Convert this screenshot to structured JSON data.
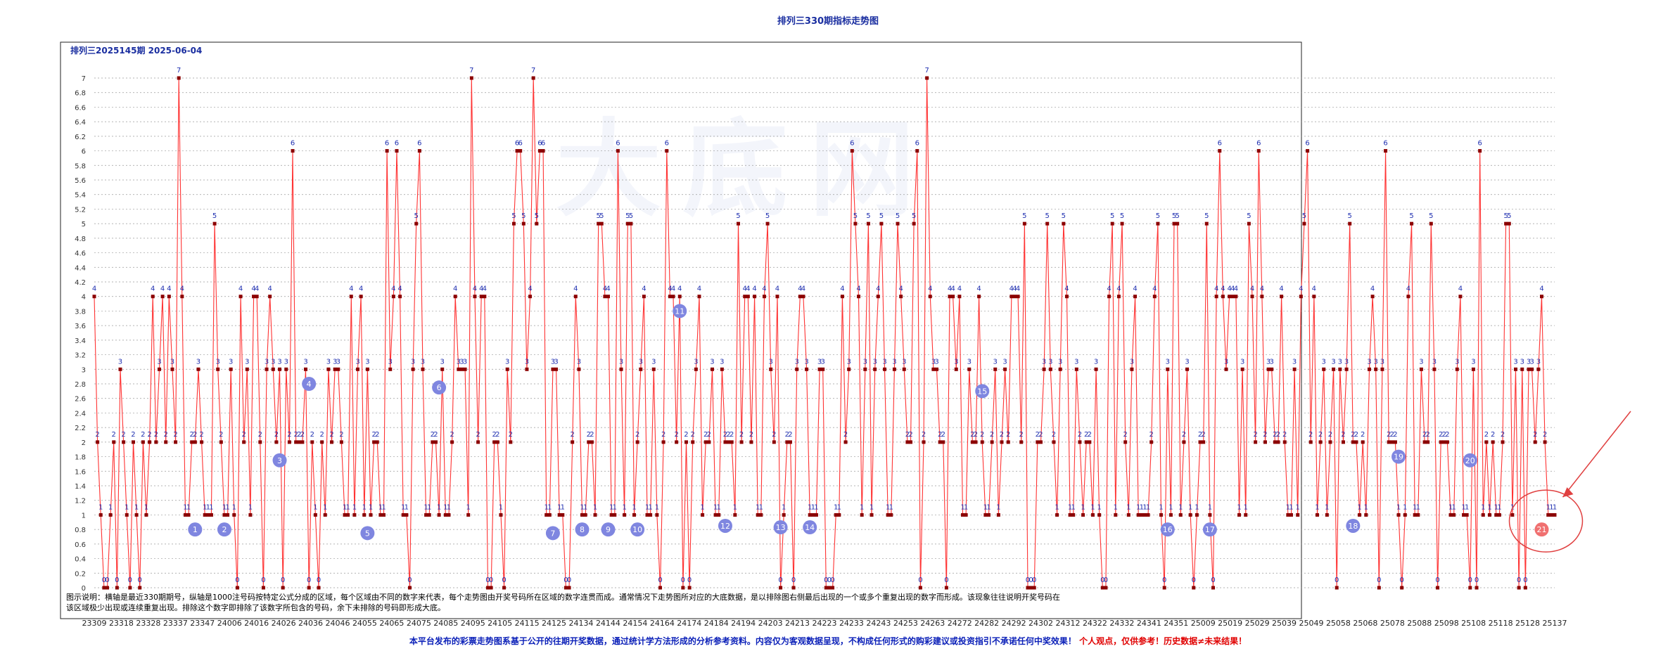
{
  "page": {
    "title": "排列三330期指标走势图",
    "subtitle": "排列三2025145期  2025-06-04",
    "watermark": "大底网",
    "description": "图示说明：横轴是最近330期期号，纵轴是1000注号码按特定公式分成的区域，每个区域由不同的数字来代表，每个走势图由开奖号码所在区域的数字连贯而成。通常情况下走势图所对应的大底数据，是以排除图右侧最后出现的一个或多个重复出现的数字而形成。该现象往往说明开奖号码在该区域极少出现或连续重复出现。排除这个数字即排除了该数字所包含的号码，余下未排除的号码即形成大底。",
    "disclaimer_main": "本平台发布的彩票走势图系基于公开的往期开奖数据，通过统计学方法形成的分析参考资料。内容仅为客观数据呈现，不构成任何形式的购彩建议或投资指引不承诺任何中奖效果！",
    "disclaimer_red": "个人观点，仅供参考！历史数据≠未来结果！"
  },
  "chart_data": {
    "type": "line",
    "title": "排列三330期指标走势图",
    "xlabel": "",
    "ylabel": "",
    "ylim": [
      0,
      7
    ],
    "y_ticks": [
      "0",
      "0.2",
      "0.4",
      "0.6",
      "0.8",
      "1",
      "1.2",
      "1.4",
      "1.6",
      "1.8",
      "2",
      "2.2",
      "2.4",
      "2.6",
      "2.8",
      "3",
      "3.2",
      "3.4",
      "3.6",
      "3.8",
      "4",
      "4.2",
      "4.4",
      "4.6",
      "4.8",
      "5",
      "5.2",
      "5.4",
      "5.6",
      "5.8",
      "6",
      "6.2",
      "6.4",
      "6.6",
      "6.8",
      "7"
    ],
    "x_tick_labels": [
      "23309",
      "23318",
      "23328",
      "23337",
      "23347",
      "24006",
      "24016",
      "24026",
      "24036",
      "24046",
      "24055",
      "24065",
      "24075",
      "24085",
      "24095",
      "24105",
      "24115",
      "24125",
      "24134",
      "24144",
      "24154",
      "24164",
      "24174",
      "24184",
      "24194",
      "24203",
      "24213",
      "24223",
      "24233",
      "24243",
      "24253",
      "24263",
      "24272",
      "24282",
      "24292",
      "24302",
      "24312",
      "24322",
      "24332",
      "24341",
      "24351",
      "25009",
      "25019",
      "25029",
      "25039",
      "25049",
      "25058",
      "25068",
      "25078",
      "25088",
      "25098",
      "25108",
      "25118",
      "25128",
      "25137"
    ],
    "grid": true,
    "series": [
      {
        "color": "#ff3333",
        "marker_color": "#8b0000",
        "values": [
          4,
          2,
          1,
          0,
          0,
          1,
          2,
          0,
          3,
          2,
          1,
          0,
          2,
          1,
          0,
          2,
          1,
          2,
          4,
          2,
          3,
          4,
          2,
          4,
          3,
          2,
          7,
          4,
          1,
          1,
          2,
          2,
          3,
          2,
          1,
          1,
          1,
          5,
          3,
          2,
          1,
          1,
          3,
          1,
          0,
          4,
          2,
          3,
          1,
          4,
          4,
          2,
          0,
          3,
          4,
          3,
          2,
          3,
          0,
          3,
          2,
          6,
          2,
          2,
          2,
          3,
          0,
          2,
          1,
          0,
          2,
          1,
          3,
          2,
          3,
          3,
          2,
          1,
          1,
          4,
          1,
          3,
          4,
          1,
          3,
          1,
          2,
          2,
          1,
          1,
          6,
          3,
          4,
          6,
          4,
          1,
          1,
          0,
          3,
          5,
          6,
          3,
          1,
          1,
          2,
          2,
          1,
          3,
          1,
          1,
          2,
          4,
          3,
          3,
          3,
          1,
          7,
          4,
          2,
          4,
          4,
          0,
          0,
          2,
          2,
          1,
          0,
          3,
          2,
          5,
          6,
          6,
          5,
          3,
          4,
          7,
          5,
          6,
          6,
          1,
          1,
          3,
          3,
          1,
          1,
          0,
          0,
          2,
          4,
          3,
          1,
          1,
          2,
          2,
          1,
          5,
          5,
          4,
          4,
          1,
          1,
          6,
          3,
          1,
          5,
          5,
          1,
          2,
          3,
          4,
          1,
          1,
          3,
          1,
          0,
          2,
          6,
          4,
          4,
          2,
          4,
          0,
          2,
          0,
          2,
          3,
          4,
          1,
          2,
          2,
          3,
          1,
          1,
          3,
          2,
          2,
          2,
          1,
          5,
          2,
          4,
          4,
          2,
          4,
          1,
          1,
          4,
          5,
          3,
          2,
          4,
          0,
          1,
          2,
          2,
          0,
          3,
          4,
          4,
          3,
          1,
          1,
          1,
          3,
          3,
          0,
          0,
          0,
          1,
          1,
          4,
          2,
          3,
          6,
          5,
          4,
          1,
          3,
          5,
          1,
          3,
          4,
          5,
          3,
          1,
          1,
          3,
          5,
          4,
          3,
          2,
          2,
          5,
          6,
          0,
          2,
          7,
          4,
          3,
          3,
          2,
          2,
          0,
          4,
          4,
          3,
          4,
          1,
          1,
          3,
          2,
          2,
          4,
          2,
          1,
          1,
          2,
          3,
          1,
          2,
          3,
          2,
          4,
          4,
          4,
          2,
          5,
          0,
          0,
          0,
          2,
          2,
          3,
          5,
          3,
          2,
          1,
          3,
          5,
          4,
          1,
          1,
          3,
          2,
          1,
          2,
          2,
          1,
          3,
          1,
          0,
          0,
          4,
          5,
          1,
          4,
          5,
          2,
          1,
          3,
          4,
          1,
          1,
          1,
          1,
          2,
          4,
          5,
          1,
          0,
          3,
          1,
          5,
          5,
          1,
          2,
          3,
          1,
          0,
          1,
          2,
          2,
          5,
          1,
          0,
          4,
          6,
          4,
          3,
          4,
          4,
          4,
          1,
          3,
          1,
          5,
          4,
          2,
          6,
          4,
          2,
          3,
          3,
          2,
          2,
          4,
          2,
          1,
          1,
          3,
          1,
          4,
          5,
          6,
          2,
          4,
          1,
          2,
          3,
          1,
          2,
          3,
          0,
          3,
          2,
          3,
          5,
          2,
          2,
          1,
          2,
          1,
          3,
          4,
          3,
          0,
          3,
          6,
          2,
          2,
          2,
          1,
          0,
          1,
          4,
          5,
          1,
          1,
          3,
          2,
          2,
          5,
          3,
          0,
          2,
          2,
          2,
          1,
          1,
          3,
          4,
          1,
          1,
          0,
          3,
          0,
          6,
          1,
          2,
          1,
          2,
          1,
          1,
          2,
          5,
          5,
          1,
          3,
          0,
          3,
          0,
          3,
          3,
          2,
          3,
          4,
          2,
          1,
          1,
          1
        ]
      }
    ],
    "highlight_markers": [
      {
        "label": "1",
        "x_index": 7,
        "value": 0.8
      },
      {
        "label": "2",
        "x_index": 9,
        "value": 0.8
      },
      {
        "label": "3",
        "x_index": 13,
        "value": 1.75
      },
      {
        "label": "4",
        "x_index": 15,
        "value": 2.8
      },
      {
        "label": "5",
        "x_index": 19,
        "value": 0.75
      },
      {
        "label": "6",
        "x_index": 24,
        "value": 2.75
      },
      {
        "label": "7",
        "x_index": 32,
        "value": 0.75
      },
      {
        "label": "8",
        "x_index": 34,
        "value": 0.8
      },
      {
        "label": "9",
        "x_index": 36,
        "value": 0.8
      },
      {
        "label": "10",
        "x_index": 38,
        "value": 0.8
      },
      {
        "label": "11",
        "x_index": 41,
        "value": 3.8
      },
      {
        "label": "12",
        "x_index": 44,
        "value": 0.85
      },
      {
        "label": "13",
        "x_index": 48,
        "value": 0.83
      },
      {
        "label": "14",
        "x_index": 50,
        "value": 0.83
      },
      {
        "label": "15",
        "x_index": 62,
        "value": 2.7
      },
      {
        "label": "16",
        "x_index": 75,
        "value": 0.8
      },
      {
        "label": "17",
        "x_index": 78,
        "value": 0.8
      },
      {
        "label": "18",
        "x_index": 88,
        "value": 0.85
      },
      {
        "label": "19",
        "x_index": 91,
        "value": 1.8
      },
      {
        "label": "20",
        "x_index": 96,
        "value": 1.75
      },
      {
        "label": "21",
        "x_index": 101,
        "value": 0.8
      }
    ],
    "annotation": {
      "circled_label": "21"
    }
  }
}
